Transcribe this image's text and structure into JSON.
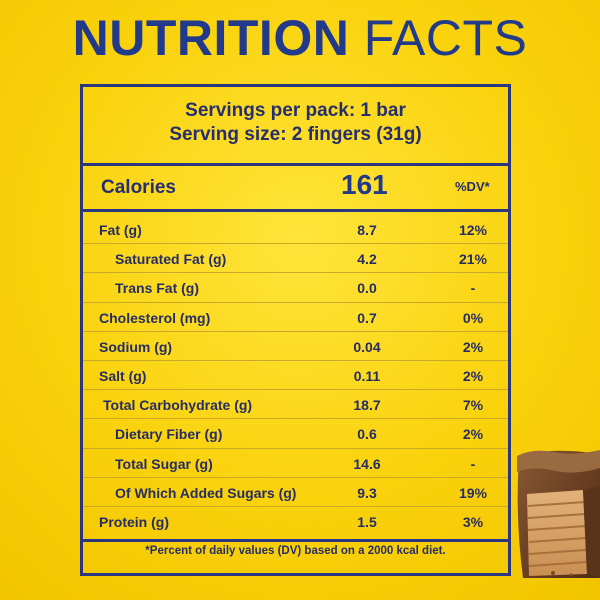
{
  "title": {
    "bold": "NUTRITION",
    "light": "FACTS"
  },
  "serving": {
    "line1": "Servings per pack: 1 bar",
    "line2": "Serving size: 2 fingers (31g)"
  },
  "calories": {
    "label": "Calories",
    "value": "161",
    "dv_header": "%DV*"
  },
  "nutrients": [
    {
      "name": "Fat (g)",
      "value": "8.7",
      "dv": "12%"
    },
    {
      "name": "Saturated Fat (g)",
      "value": "4.2",
      "dv": "21%"
    },
    {
      "name": "Trans Fat (g)",
      "value": "0.0",
      "dv": "-"
    },
    {
      "name": "Cholesterol (mg)",
      "value": "0.7",
      "dv": "0%"
    },
    {
      "name": "Sodium (g)",
      "value": "0.04",
      "dv": "2%"
    },
    {
      "name": "Salt (g)",
      "value": "0.11",
      "dv": "2%"
    },
    {
      "name": "Total Carbohydrate (g)",
      "value": "18.7",
      "dv": "7%"
    },
    {
      "name": "Dietary Fiber (g)",
      "value": "0.6",
      "dv": "2%"
    },
    {
      "name": "Total Sugar (g)",
      "value": "14.6",
      "dv": "-"
    },
    {
      "name": "Of Which Added Sugars (g)",
      "value": "9.3",
      "dv": "19%"
    },
    {
      "name": "Protein (g)",
      "value": "1.5",
      "dv": "3%"
    }
  ],
  "footnote": "*Percent of daily values (DV) based on a 2000 kcal diet.",
  "colors": {
    "background": "#f9d20c",
    "title": "#223a8c",
    "border": "#2b3680",
    "text": "#262c66"
  }
}
